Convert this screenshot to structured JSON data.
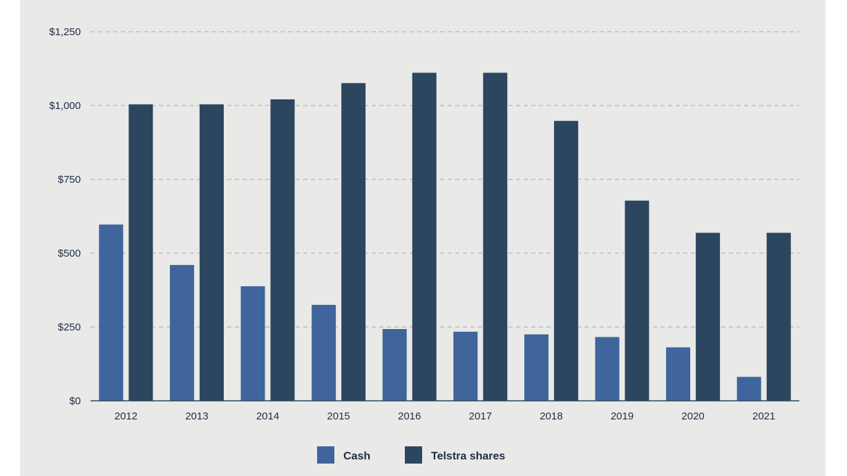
{
  "chart_data": {
    "type": "bar",
    "title": "",
    "xlabel": "",
    "ylabel": "",
    "categories": [
      "2012",
      "2013",
      "2014",
      "2015",
      "2016",
      "2017",
      "2018",
      "2019",
      "2020",
      "2021"
    ],
    "series": [
      {
        "name": "Cash",
        "color": "#40649c",
        "values": [
          597,
          460,
          388,
          325,
          243,
          234,
          225,
          216,
          181,
          81
        ]
      },
      {
        "name": "Telstra shares",
        "color": "#2c4660",
        "values": [
          1004,
          1004,
          1021,
          1076,
          1111,
          1111,
          948,
          678,
          569,
          569
        ]
      }
    ],
    "ylim": [
      0,
      1250
    ],
    "yticks": [
      0,
      250,
      500,
      750,
      1000,
      1250
    ],
    "ytick_labels": [
      "$0",
      "$250",
      "$500",
      "$750",
      "$1,000",
      "$1,250"
    ],
    "grid": true,
    "legend_position": "bottom-center",
    "colors": {
      "background": "#e9e9e7",
      "gridline": "#a6a6a6",
      "axis": "#2c4660",
      "text": "#1f2d45"
    }
  }
}
